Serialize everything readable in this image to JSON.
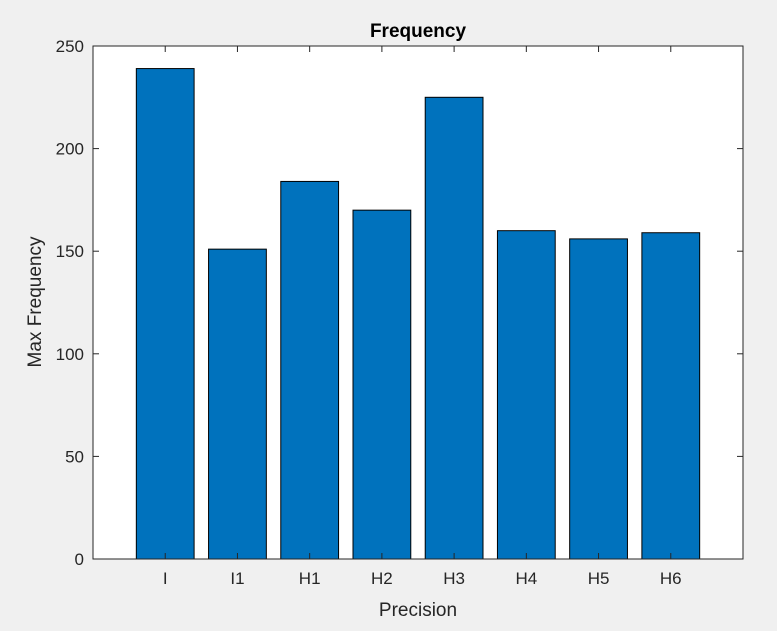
{
  "chart_data": {
    "type": "bar",
    "title": "Frequency",
    "xlabel": "Precision",
    "ylabel": "Max Frequency",
    "categories": [
      "I",
      "I1",
      "H1",
      "H2",
      "H3",
      "H4",
      "H5",
      "H6"
    ],
    "values": [
      239,
      151,
      184,
      170,
      225,
      160,
      156,
      159
    ],
    "ylim": [
      0,
      250
    ],
    "yticks": [
      "0",
      "50",
      "100",
      "150",
      "200",
      "250"
    ],
    "grid": false,
    "legend": "none",
    "bar_color": "#0072bd",
    "bar_edge_color": "#000000"
  }
}
